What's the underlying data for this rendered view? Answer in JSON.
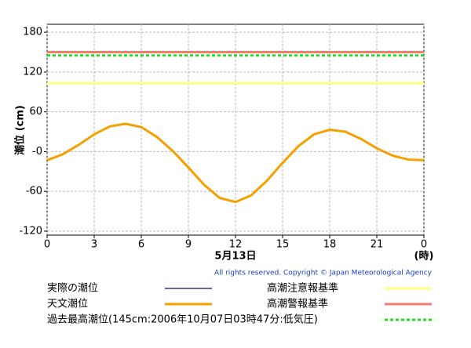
{
  "chart_data": {
    "type": "line",
    "xlabel": "5月13日",
    "xunit": "(時)",
    "ylabel": "潮位 (cm)",
    "copyright": "All rights reserved. Copyright © Japan Meteorological Agency",
    "x": [
      0,
      1,
      2,
      3,
      4,
      5,
      6,
      7,
      8,
      9,
      10,
      11,
      12,
      13,
      14,
      15,
      16,
      17,
      18,
      19,
      20,
      21,
      22,
      23,
      24
    ],
    "series": [
      {
        "name": "実際の潮位",
        "color": "#3a2fa0",
        "values": [
          null,
          null,
          null,
          null,
          null,
          null,
          null,
          null,
          null,
          null,
          null,
          null,
          null,
          null,
          null,
          null,
          null,
          null,
          null,
          null,
          null,
          null,
          null,
          null,
          null
        ]
      },
      {
        "name": "天文潮位",
        "color": "#f5a000",
        "values": [
          -13,
          -4,
          10,
          26,
          38,
          42,
          37,
          22,
          1,
          -24,
          -50,
          -70,
          -76,
          -66,
          -44,
          -17,
          8,
          26,
          33,
          30,
          19,
          5,
          -6,
          -12,
          -13
        ]
      }
    ],
    "hlines": [
      {
        "name": "高潮注意報基準",
        "color": "#ffff80",
        "value": 103,
        "style": "solid"
      },
      {
        "name": "高潮警報基準",
        "color": "#f47a6c",
        "value": 150,
        "style": "solid"
      },
      {
        "name": "過去最高潮位(145cm:2006年10月07日03時47分:低気圧)",
        "color": "#22dd22",
        "value": 145,
        "style": "dotted"
      }
    ],
    "xlim": [
      0,
      24
    ],
    "xticks": [
      0,
      3,
      6,
      9,
      12,
      15,
      18,
      21,
      {
        "value": 24,
        "label": "0"
      }
    ],
    "ylim": [
      -126,
      192
    ],
    "yticks": [
      -120,
      -60,
      {
        "value": 0,
        "label": "-0"
      },
      60,
      120,
      180
    ],
    "grid": true
  }
}
